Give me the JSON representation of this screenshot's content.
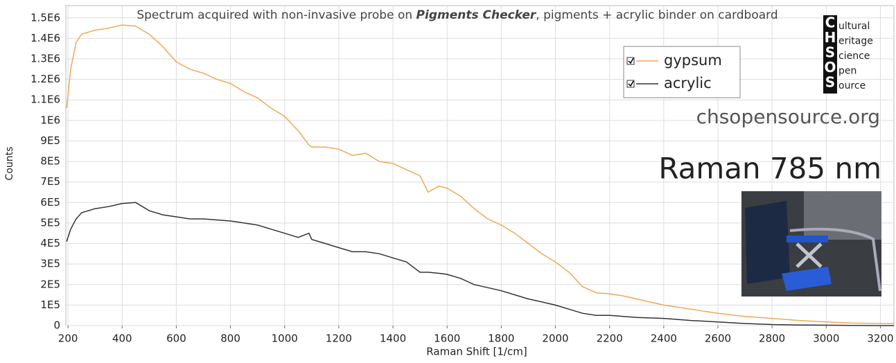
{
  "chart_data": {
    "type": "line",
    "title": [
      "Spectrum acquired with non-invasive probe on ",
      "Pigments Checker",
      ", pigments + acrylic binder on cardboard"
    ],
    "x_label": "Raman Shift [1/cm]",
    "y_label": "Counts",
    "logo_letters": [
      "C",
      "H",
      "S",
      "O",
      "S"
    ],
    "logo_words": [
      "ultural",
      "eritage",
      "cience",
      "pen",
      "ource"
    ],
    "website": "chsopensource.org",
    "annotation": "Raman 785 nm",
    "x": [
      195,
      210,
      230,
      250,
      300,
      350,
      400,
      450,
      500,
      550,
      600,
      650,
      700,
      750,
      800,
      850,
      900,
      950,
      1000,
      1050,
      1090,
      1100,
      1150,
      1200,
      1250,
      1300,
      1350,
      1400,
      1450,
      1500,
      1530,
      1570,
      1600,
      1650,
      1700,
      1750,
      1800,
      1850,
      1900,
      1950,
      2000,
      2050,
      2100,
      2150,
      2200,
      2250,
      2300,
      2400,
      2500,
      2600,
      2700,
      2800,
      2900,
      3000,
      3100,
      3200,
      3250
    ],
    "series": [
      {
        "name": "gypsum",
        "color": "#f0a858",
        "values": [
          1060000,
          1250000,
          1380000,
          1420000,
          1440000,
          1450000,
          1465000,
          1460000,
          1420000,
          1360000,
          1285000,
          1250000,
          1230000,
          1200000,
          1180000,
          1140000,
          1110000,
          1060000,
          1020000,
          950000,
          880000,
          870000,
          870000,
          860000,
          830000,
          840000,
          800000,
          790000,
          760000,
          730000,
          650000,
          680000,
          670000,
          630000,
          570000,
          520000,
          490000,
          450000,
          400000,
          350000,
          310000,
          260000,
          190000,
          160000,
          155000,
          145000,
          130000,
          100000,
          80000,
          60000,
          45000,
          35000,
          25000,
          18000,
          12000,
          10000,
          10000
        ]
      },
      {
        "name": "acrylic",
        "color": "#333333",
        "values": [
          410000,
          470000,
          520000,
          550000,
          570000,
          580000,
          595000,
          600000,
          560000,
          540000,
          530000,
          520000,
          520000,
          515000,
          510000,
          500000,
          490000,
          470000,
          450000,
          430000,
          450000,
          420000,
          400000,
          380000,
          360000,
          360000,
          350000,
          330000,
          310000,
          260000,
          260000,
          255000,
          250000,
          230000,
          200000,
          185000,
          170000,
          150000,
          130000,
          115000,
          100000,
          80000,
          60000,
          50000,
          50000,
          45000,
          40000,
          35000,
          25000,
          18000,
          10000,
          5000,
          3000,
          2000,
          1000,
          0,
          0
        ]
      }
    ],
    "xlim": [
      192,
      3250
    ],
    "ylim": [
      0,
      1560000
    ],
    "xticks": [
      200,
      400,
      600,
      800,
      1000,
      1200,
      1400,
      1600,
      1800,
      2000,
      2200,
      2400,
      2600,
      2800,
      3000,
      3200
    ],
    "yticks": [
      0,
      {
        "value": 100000,
        "label": "1E5"
      },
      {
        "value": 200000,
        "label": "2E5"
      },
      {
        "value": 300000,
        "label": "3E5"
      },
      {
        "value": 400000,
        "label": "4E5"
      },
      {
        "value": 500000,
        "label": "5E5"
      },
      {
        "value": 600000,
        "label": "6E5"
      },
      {
        "value": 700000,
        "label": "7E5"
      },
      {
        "value": 800000,
        "label": "8E5"
      },
      {
        "value": 900000,
        "label": "9E5"
      },
      {
        "value": 1000000,
        "label": "1E6"
      },
      {
        "value": 1100000,
        "label": "1.1E6"
      },
      {
        "value": 1200000,
        "label": "1.2E6"
      },
      {
        "value": 1300000,
        "label": "1.3E6"
      },
      {
        "value": 1400000,
        "label": "1.4E6"
      },
      {
        "value": 1500000,
        "label": "1.5E6"
      }
    ],
    "grid": true
  }
}
